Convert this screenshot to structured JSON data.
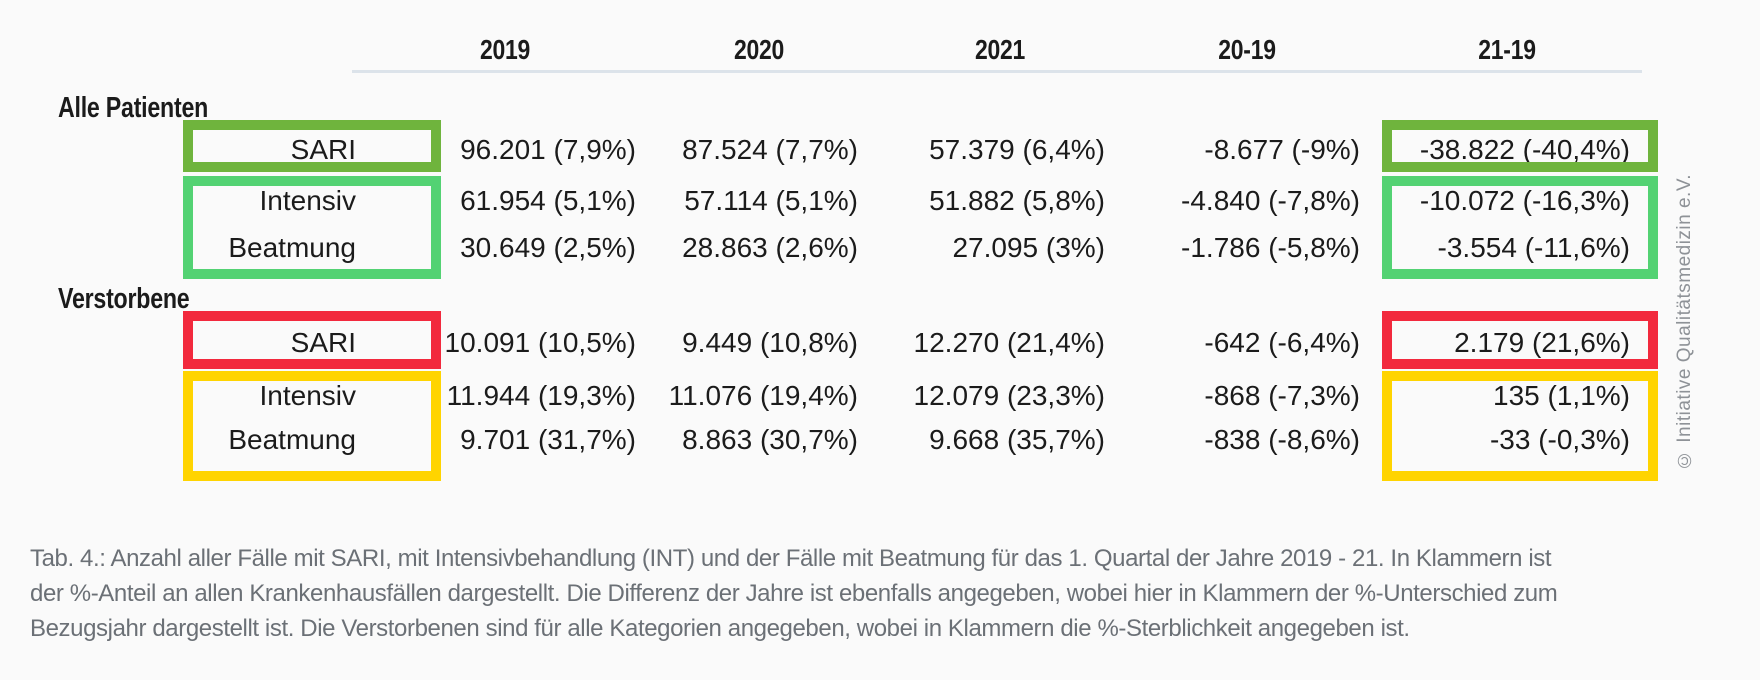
{
  "chart_data": {
    "type": "table",
    "title": "Tab. 4.",
    "columns": [
      "2019",
      "2020",
      "2021",
      "20-19",
      "21-19"
    ],
    "sections": [
      {
        "label": "Alle Patienten",
        "rows": [
          {
            "label": "SARI",
            "highlight": "green-dark",
            "values": [
              "96.201 (7,9%)",
              "87.524 (7,7%)",
              "57.379 (6,4%)",
              "-8.677 (-9%)",
              "-38.822 (-40,4%)"
            ]
          },
          {
            "label": "Intensiv",
            "highlight": "green-light",
            "values": [
              "61.954 (5,1%)",
              "57.114 (5,1%)",
              "51.882 (5,8%)",
              "-4.840 (-7,8%)",
              "-10.072 (-16,3%)"
            ]
          },
          {
            "label": "Beatmung",
            "highlight": "green-light",
            "values": [
              "30.649 (2,5%)",
              "28.863 (2,6%)",
              "27.095 (3%)",
              "-1.786 (-5,8%)",
              "-3.554 (-11,6%)"
            ]
          }
        ]
      },
      {
        "label": "Verstorbene",
        "rows": [
          {
            "label": "SARI",
            "highlight": "red",
            "values": [
              "10.091 (10,5%)",
              "9.449 (10,8%)",
              "12.270 (21,4%)",
              "-642 (-6,4%)",
              "2.179 (21,6%)"
            ]
          },
          {
            "label": "Intensiv",
            "highlight": "yellow",
            "values": [
              "11.944 (19,3%)",
              "11.076 (19,4%)",
              "12.079 (23,3%)",
              "-868 (-7,3%)",
              "135 (1,1%)"
            ]
          },
          {
            "label": "Beatmung",
            "highlight": "yellow",
            "values": [
              "9.701 (31,7%)",
              "8.863 (30,7%)",
              "9.668 (35,7%)",
              "-838 (-8,6%)",
              "-33 (-0,3%)"
            ]
          }
        ]
      }
    ],
    "highlight_colors": {
      "green_dark": "#6fb43d",
      "green_light": "#53d273",
      "red": "#f2293d",
      "yellow": "#ffd400"
    },
    "caption_lines": [
      "Tab. 4.: Anzahl aller Fälle mit SARI, mit Intensivbehandlung (INT) und der Fälle mit Beatmung für das 1. Quartal der Jahre 2019 - 21. In Klammern ist",
      "der %-Anteil an allen Krankenhausfällen dargestellt. Die Differenz der Jahre ist ebenfalls angegeben, wobei hier in Klammern der %-Unterschied zum",
      "Bezugsjahr dargestellt ist. Die Verstorbenen sind für alle Kategorien angegeben, wobei in Klammern die %-Sterblichkeit angegeben ist."
    ],
    "watermark": "© Initiative Qualitätsmedizin e.V."
  }
}
